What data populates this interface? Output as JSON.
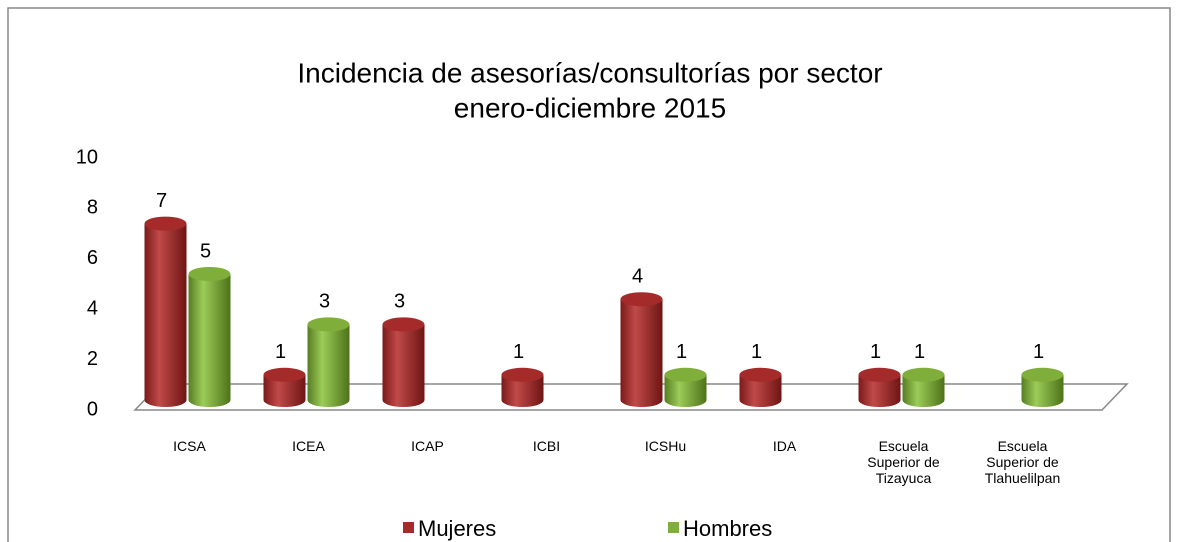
{
  "chart_data": {
    "type": "bar",
    "title": "Incidencia de asesorías/consultorías por sector",
    "subtitle": "enero-diciembre 2015",
    "categories": [
      "ICSA",
      "ICEA",
      "ICAP",
      "ICBI",
      "ICSHu",
      "IDA",
      "Escuela Superior de Tizayuca",
      "Escuela Superior de Tlahuelilpan"
    ],
    "series": [
      {
        "name": "Mujeres",
        "color": "#a52a2a",
        "values": [
          7,
          1,
          3,
          1,
          4,
          1,
          1,
          null
        ]
      },
      {
        "name": "Hombres",
        "color": "#7fae3a",
        "values": [
          5,
          3,
          null,
          null,
          1,
          null,
          1,
          1
        ]
      }
    ],
    "ylim": [
      0,
      10
    ],
    "yticks": [
      0,
      2,
      4,
      6,
      8,
      10
    ],
    "legend": "bottom"
  }
}
